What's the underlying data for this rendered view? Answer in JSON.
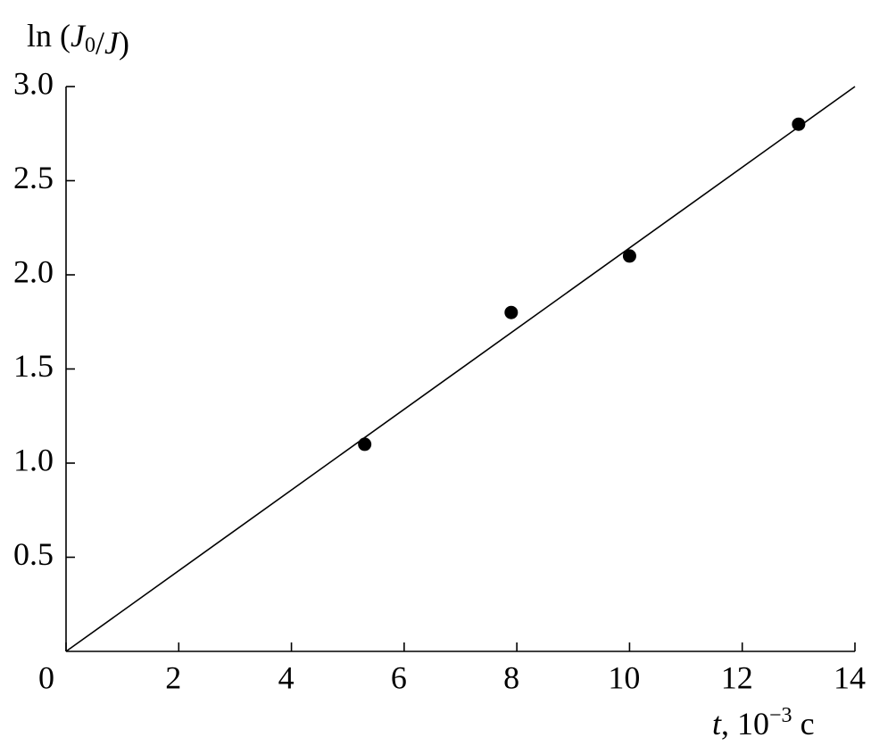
{
  "chart_data": {
    "type": "scatter",
    "y_label": "ln (J0/J)",
    "x_label": "t, 10−3 c",
    "x": [
      5.3,
      7.9,
      10,
      13
    ],
    "values": [
      1.1,
      1.8,
      2.1,
      2.8
    ],
    "color": "#000000",
    "fit_line": {
      "x": [
        0,
        14
      ],
      "values": [
        0,
        3.0
      ],
      "color": "#000000"
    },
    "xlim": [
      0,
      14
    ],
    "ylim": [
      0,
      3.0
    ],
    "xticks": [
      0,
      2,
      4,
      6,
      8,
      10,
      12,
      14
    ],
    "yticks": [
      0.5,
      {
        "value": 1,
        "label": "1.0"
      },
      1.5,
      {
        "value": 2,
        "label": "2.0"
      },
      2.5,
      {
        "value": 3,
        "label": "3.0"
      }
    ],
    "grid": false
  }
}
